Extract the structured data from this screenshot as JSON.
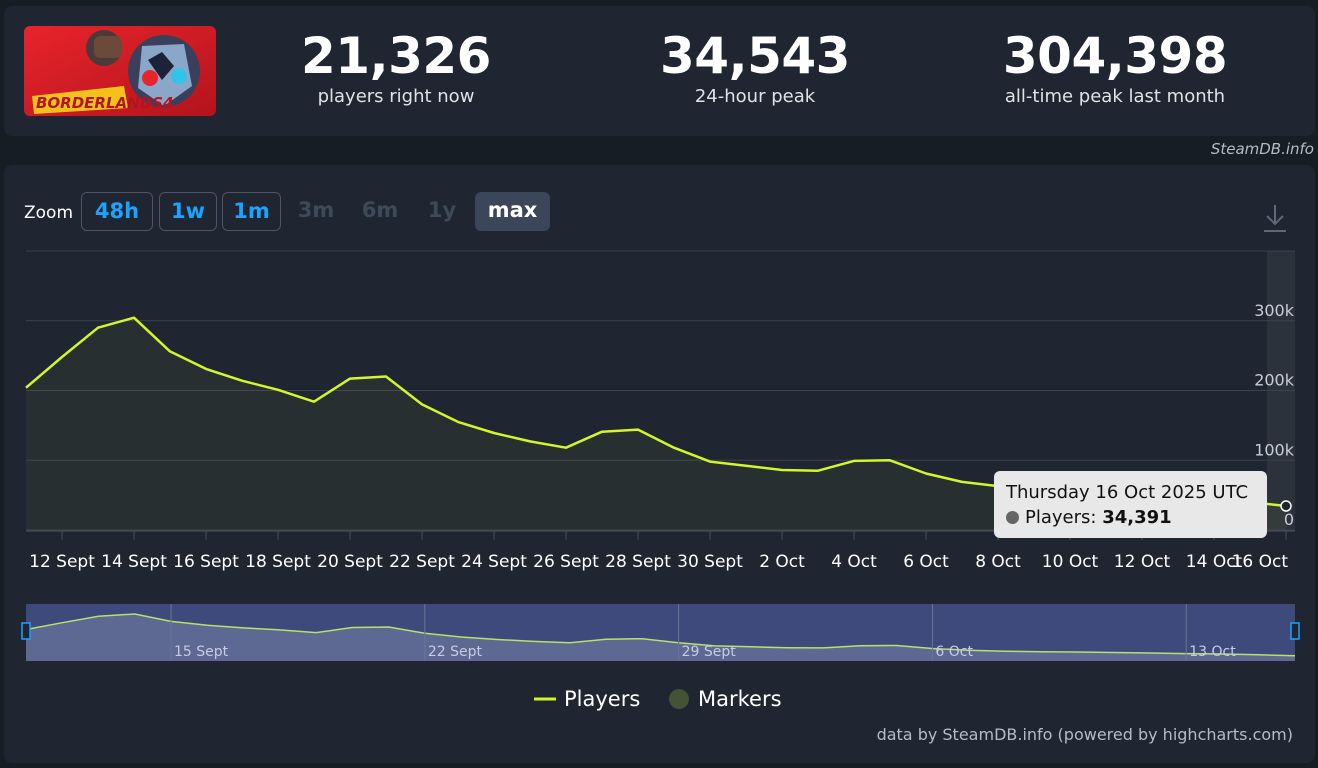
{
  "game": {
    "logo_text": "BORDERLANDS4"
  },
  "stats": [
    {
      "value": "21,326",
      "label": "players right now"
    },
    {
      "value": "34,543",
      "label": "24-hour peak"
    },
    {
      "value": "304,398",
      "label": "all-time peak last month"
    }
  ],
  "credit_top": "SteamDB.info",
  "zoom": {
    "label": "Zoom",
    "buttons": [
      {
        "label": "48h",
        "state": "active"
      },
      {
        "label": "1w",
        "state": "active"
      },
      {
        "label": "1m",
        "state": "active"
      },
      {
        "label": "3m",
        "state": "disabled"
      },
      {
        "label": "6m",
        "state": "disabled"
      },
      {
        "label": "1y",
        "state": "disabled"
      },
      {
        "label": "max",
        "state": "selected"
      }
    ]
  },
  "download_icon": "download-icon",
  "tooltip": {
    "title": "Thursday 16 Oct 2025 UTC",
    "series_label": "Players:",
    "series_value": "34,391"
  },
  "legend": {
    "players": "Players",
    "markers": "Markers"
  },
  "credit_bottom": "data by SteamDB.info (powered by highcharts.com)",
  "colors": {
    "line": "#d4f52a",
    "background": "#1f2531",
    "tooltip_bg": "#e8e8e8",
    "navigator_bg": "#3e4a7c"
  },
  "chart_data": {
    "type": "line",
    "series": [
      {
        "name": "Players",
        "x": [
          "2025-09-11",
          "2025-09-12",
          "2025-09-13",
          "2025-09-14",
          "2025-09-15",
          "2025-09-16",
          "2025-09-17",
          "2025-09-18",
          "2025-09-19",
          "2025-09-20",
          "2025-09-21",
          "2025-09-22",
          "2025-09-23",
          "2025-09-24",
          "2025-09-25",
          "2025-09-26",
          "2025-09-27",
          "2025-09-28",
          "2025-09-29",
          "2025-09-30",
          "2025-10-01",
          "2025-10-02",
          "2025-10-03",
          "2025-10-04",
          "2025-10-05",
          "2025-10-06",
          "2025-10-07",
          "2025-10-08",
          "2025-10-09",
          "2025-10-10",
          "2025-10-11",
          "2025-10-12",
          "2025-10-13",
          "2025-10-14",
          "2025-10-15",
          "2025-10-16"
        ],
        "values": [
          204000,
          248000,
          290000,
          304398,
          256000,
          231000,
          214000,
          201000,
          184000,
          217000,
          220000,
          180000,
          155000,
          139000,
          127000,
          118000,
          141000,
          144000,
          118000,
          98000,
          92000,
          86000,
          85000,
          99000,
          100000,
          81000,
          69000,
          63000,
          60000,
          58000,
          55000,
          52000,
          48000,
          45000,
          40000,
          34391
        ]
      }
    ],
    "x_ticks": [
      "12 Sept",
      "14 Sept",
      "16 Sept",
      "18 Sept",
      "20 Sept",
      "22 Sept",
      "24 Sept",
      "26 Sept",
      "28 Sept",
      "30 Sept",
      "2 Oct",
      "4 Oct",
      "6 Oct",
      "8 Oct",
      "10 Oct",
      "12 Oct",
      "14 Oct",
      "16 Oct"
    ],
    "y_ticks": [
      "0",
      "100k",
      "200k",
      "300k"
    ],
    "ylim": [
      0,
      400000
    ],
    "navigator_ticks": [
      "15 Sept",
      "22 Sept",
      "29 Sept",
      "6 Oct",
      "13 Oct"
    ],
    "grid": true,
    "legend_position": "bottom-center"
  }
}
